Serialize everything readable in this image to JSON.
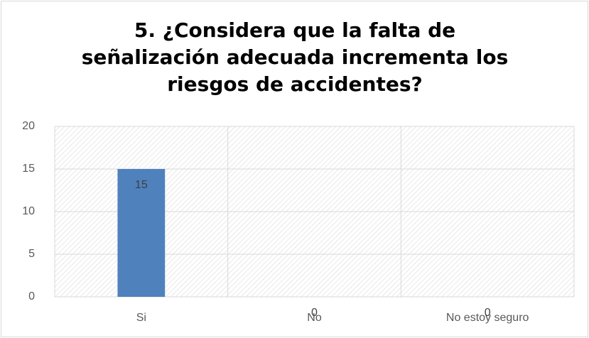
{
  "chart_data": {
    "type": "bar",
    "title": "5. ¿Considera que la falta de señalización adecuada incrementa los riesgos de accidentes?",
    "categories": [
      "Si",
      "No",
      "No estoy seguro"
    ],
    "values": [
      15,
      0,
      0
    ],
    "color": "#4f81bd",
    "ylim": [
      0,
      20
    ],
    "yticks": [
      0,
      5,
      10,
      15,
      20
    ],
    "grid": true
  }
}
